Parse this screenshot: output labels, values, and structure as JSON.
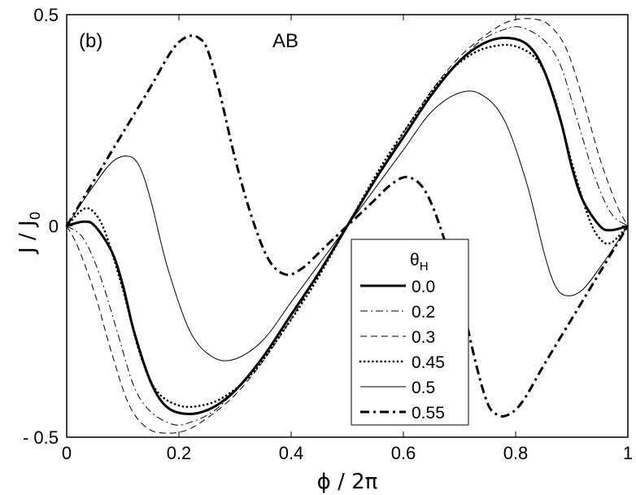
{
  "chart_data": {
    "type": "line",
    "panel_label": "(b)",
    "annotation": "AB",
    "xlabel": "ϕ / 2π",
    "ylabel_main": "J / J",
    "ylabel_sub": "0",
    "xlim": [
      0,
      1
    ],
    "ylim": [
      -0.5,
      0.5
    ],
    "xticks": [
      {
        "value": 0,
        "label": "0"
      },
      {
        "value": 0.2,
        "label": "0.2"
      },
      {
        "value": 0.4,
        "label": "0.4"
      },
      {
        "value": 0.6,
        "label": "0.6"
      },
      {
        "value": 0.8,
        "label": "0.8"
      },
      {
        "value": 1,
        "label": "1"
      }
    ],
    "yticks": [
      {
        "value": 0.5,
        "label": "0.5"
      },
      {
        "value": 0,
        "label": "0"
      },
      {
        "value": -0.5,
        "label": "- 0.5"
      }
    ],
    "legend": {
      "title_main": "θ",
      "title_sub": "H",
      "position": "bottom-right"
    },
    "series": [
      {
        "name": "0.0",
        "style": "solid-thick",
        "x": [
          0,
          0.03,
          0.05,
          0.08,
          0.1,
          0.12,
          0.15,
          0.18,
          0.22,
          0.26,
          0.3,
          0.35,
          0.4,
          0.45,
          0.5,
          0.55,
          0.6,
          0.65,
          0.7,
          0.74,
          0.78,
          0.82,
          0.85,
          0.88,
          0.9,
          0.92,
          0.95,
          0.97,
          1.0
        ],
        "y": [
          0,
          0.01,
          0.0,
          -0.06,
          -0.14,
          -0.25,
          -0.37,
          -0.43,
          -0.445,
          -0.43,
          -0.39,
          -0.31,
          -0.21,
          -0.11,
          0,
          0.11,
          0.21,
          0.31,
          0.39,
          0.43,
          0.445,
          0.43,
          0.37,
          0.25,
          0.14,
          0.06,
          0.0,
          -0.01,
          0
        ]
      },
      {
        "name": "0.2",
        "style": "dashdot-thin",
        "x": [
          0,
          0.03,
          0.06,
          0.09,
          0.12,
          0.15,
          0.19,
          0.22,
          0.26,
          0.3,
          0.35,
          0.4,
          0.45,
          0.5,
          0.55,
          0.6,
          0.65,
          0.7,
          0.74,
          0.78,
          0.81,
          0.85,
          0.88,
          0.91,
          0.94,
          0.97,
          1.0
        ],
        "y": [
          0,
          -0.03,
          -0.12,
          -0.25,
          -0.38,
          -0.44,
          -0.47,
          -0.465,
          -0.44,
          -0.39,
          -0.31,
          -0.21,
          -0.11,
          0,
          0.11,
          0.21,
          0.31,
          0.39,
          0.44,
          0.465,
          0.47,
          0.44,
          0.38,
          0.25,
          0.12,
          0.03,
          0
        ]
      },
      {
        "name": "0.3",
        "style": "dashed",
        "x": [
          0,
          0.02,
          0.05,
          0.08,
          0.11,
          0.14,
          0.17,
          0.21,
          0.25,
          0.3,
          0.35,
          0.4,
          0.45,
          0.5,
          0.55,
          0.6,
          0.65,
          0.7,
          0.75,
          0.79,
          0.83,
          0.86,
          0.89,
          0.92,
          0.95,
          0.98,
          1.0
        ],
        "y": [
          0,
          -0.05,
          -0.16,
          -0.3,
          -0.42,
          -0.475,
          -0.49,
          -0.485,
          -0.455,
          -0.4,
          -0.32,
          -0.22,
          -0.11,
          0,
          0.11,
          0.22,
          0.32,
          0.4,
          0.455,
          0.485,
          0.49,
          0.475,
          0.42,
          0.3,
          0.16,
          0.05,
          0
        ]
      },
      {
        "name": "0.45",
        "style": "dotted",
        "x": [
          0,
          0.03,
          0.05,
          0.07,
          0.1,
          0.13,
          0.16,
          0.2,
          0.24,
          0.28,
          0.33,
          0.38,
          0.44,
          0.5,
          0.56,
          0.62,
          0.67,
          0.72,
          0.76,
          0.8,
          0.84,
          0.87,
          0.9,
          0.93,
          0.95,
          0.97,
          1.0
        ],
        "y": [
          0,
          0.04,
          0.03,
          -0.02,
          -0.15,
          -0.3,
          -0.39,
          -0.425,
          -0.425,
          -0.405,
          -0.35,
          -0.26,
          -0.14,
          0,
          0.14,
          0.26,
          0.35,
          0.405,
          0.425,
          0.425,
          0.39,
          0.3,
          0.15,
          0.02,
          -0.03,
          -0.04,
          0
        ]
      },
      {
        "name": "0.5",
        "style": "solid-thin",
        "x": [
          0,
          0.04,
          0.08,
          0.11,
          0.13,
          0.15,
          0.18,
          0.22,
          0.26,
          0.3,
          0.35,
          0.4,
          0.45,
          0.5,
          0.55,
          0.6,
          0.65,
          0.7,
          0.74,
          0.78,
          0.82,
          0.85,
          0.87,
          0.89,
          0.92,
          0.96,
          1.0
        ],
        "y": [
          0,
          0.08,
          0.15,
          0.165,
          0.14,
          0.06,
          -0.1,
          -0.25,
          -0.31,
          -0.315,
          -0.27,
          -0.18,
          -0.09,
          0,
          0.09,
          0.18,
          0.27,
          0.315,
          0.31,
          0.25,
          0.1,
          -0.06,
          -0.14,
          -0.165,
          -0.15,
          -0.08,
          0
        ]
      },
      {
        "name": "0.55",
        "style": "dashdot-thick",
        "x": [
          0,
          0.05,
          0.1,
          0.15,
          0.18,
          0.2,
          0.22,
          0.235,
          0.25,
          0.27,
          0.3,
          0.33,
          0.36,
          0.39,
          0.42,
          0.46,
          0.5,
          0.54,
          0.58,
          0.61,
          0.64,
          0.67,
          0.7,
          0.73,
          0.75,
          0.765,
          0.78,
          0.8,
          0.82,
          0.85,
          0.9,
          0.95,
          1.0
        ],
        "y": [
          0,
          0.11,
          0.22,
          0.33,
          0.4,
          0.435,
          0.45,
          0.445,
          0.42,
          0.33,
          0.16,
          0.02,
          -0.08,
          -0.115,
          -0.1,
          -0.05,
          0,
          0.05,
          0.1,
          0.115,
          0.08,
          -0.02,
          -0.16,
          -0.33,
          -0.42,
          -0.445,
          -0.45,
          -0.435,
          -0.4,
          -0.33,
          -0.22,
          -0.11,
          0
        ]
      }
    ]
  }
}
